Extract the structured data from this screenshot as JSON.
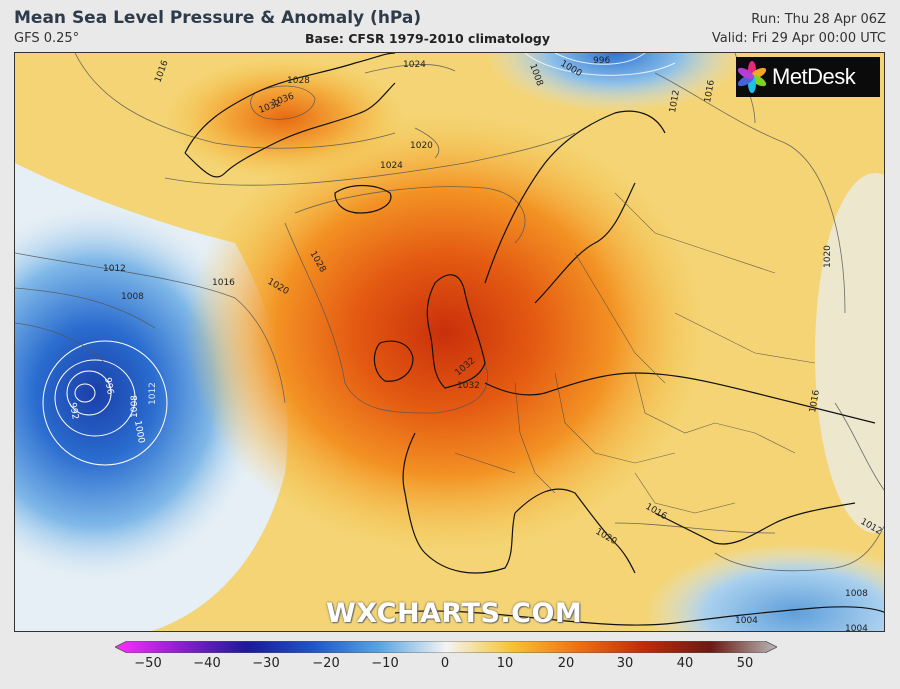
{
  "header": {
    "title": "Mean Sea Level Pressure & Anomaly (hPa)",
    "model": "GFS 0.25°",
    "base": "Base: CFSR 1979-2010 climatology",
    "run": "Run: Thu 28 Apr 06Z",
    "valid": "Valid: Fri 29 Apr 00:00 UTC"
  },
  "logo": {
    "text": "MetDesk",
    "icon": "flower-logo-icon"
  },
  "watermark": "WXCHARTS.COM",
  "isobars": [
    "1016",
    "1024",
    "1028",
    "1032",
    "1036",
    "1032",
    "1020",
    "1024",
    "1020",
    "1008",
    "1000",
    "996",
    "1012",
    "1016",
    "1012",
    "1008",
    "1016",
    "1020",
    "1028",
    "1032",
    "1012",
    "1008",
    "1000",
    "996",
    "992",
    "1004",
    "1020",
    "1016",
    "1012",
    "1016",
    "1008",
    "1004"
  ],
  "colorbar": {
    "ticks": [
      "−50",
      "−40",
      "−30",
      "−20",
      "−10",
      "0",
      "10",
      "20",
      "30",
      "40",
      "50"
    ],
    "min": -50,
    "max": 50,
    "colors": {
      "n50": "#ff2dff",
      "n40": "#8a1fd0",
      "n30": "#1a1a9a",
      "n20": "#1f55c8",
      "n10": "#5aa5e0",
      "zero": "#f4f4f4",
      "p10": "#f6c431",
      "p20": "#f07010",
      "p30": "#c02a0a",
      "p40": "#6a1a14",
      "p50": "#b8b8b8"
    }
  },
  "colors": {
    "background": "#e9e9e9",
    "high_core": "#d8400e",
    "high_mid": "#f58a1a",
    "high_outer": "#f6c44a",
    "low_core": "#1f55c8",
    "low_outer": "#8cc4ec",
    "neutral": "#eef3f6"
  }
}
